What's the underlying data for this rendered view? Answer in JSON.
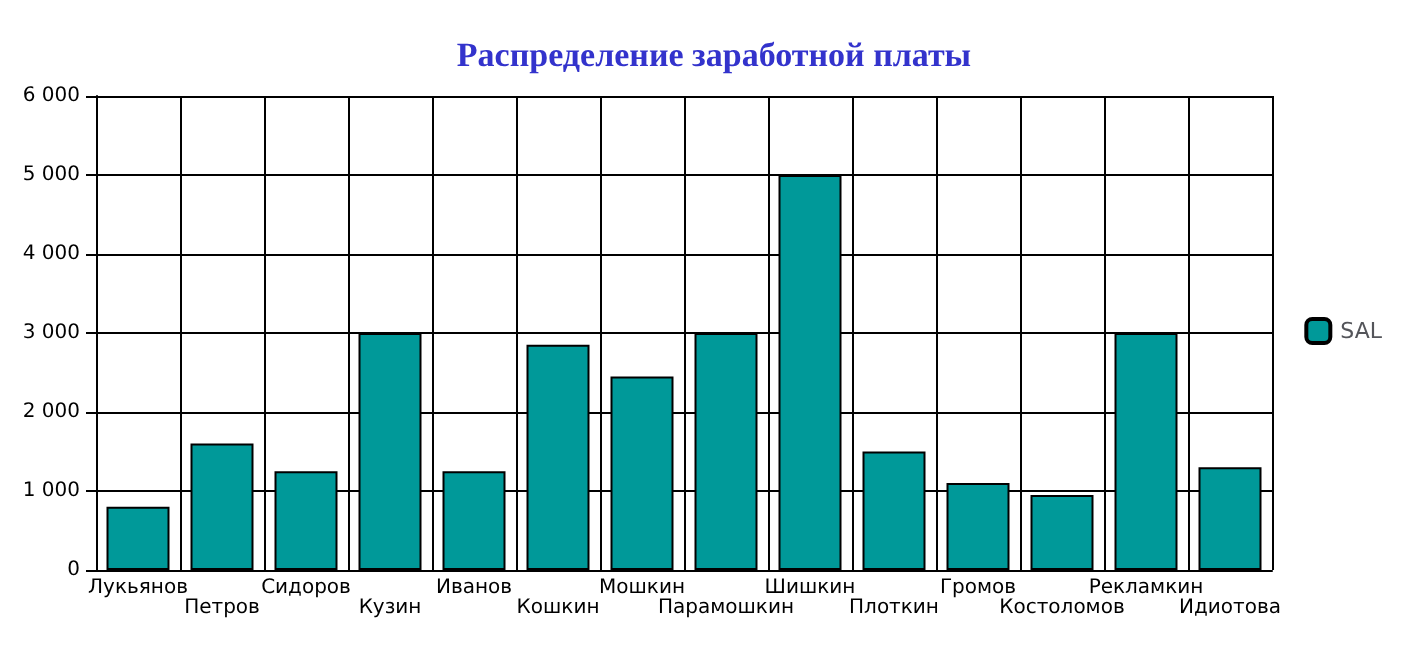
{
  "chart_data": {
    "type": "bar",
    "title": "Распределение заработной платы",
    "categories": [
      "Лукьянов",
      "Петров",
      "Сидоров",
      "Кузин",
      "Иванов",
      "Кошкин",
      "Мошкин",
      "Парамошкин",
      "Шишкин",
      "Плоткин",
      "Громов",
      "Костоломов",
      "Рекламкин",
      "Идиотова"
    ],
    "series": [
      {
        "name": "SAL",
        "color": "#009999",
        "values": [
          800,
          1600,
          1250,
          3000,
          1250,
          2850,
          2450,
          3000,
          5000,
          1500,
          1100,
          950,
          3000,
          1300
        ]
      }
    ],
    "ylim": [
      0,
      6000
    ],
    "yticks": [
      0,
      {
        "value": 1000,
        "label": "1 000"
      },
      {
        "value": 2000,
        "label": "2 000"
      },
      {
        "value": 3000,
        "label": "3 000"
      },
      {
        "value": 4000,
        "label": "4 000"
      },
      {
        "value": 5000,
        "label": "5 000"
      },
      {
        "value": 6000,
        "label": "6 000"
      }
    ],
    "grid": true,
    "legend": "right"
  }
}
